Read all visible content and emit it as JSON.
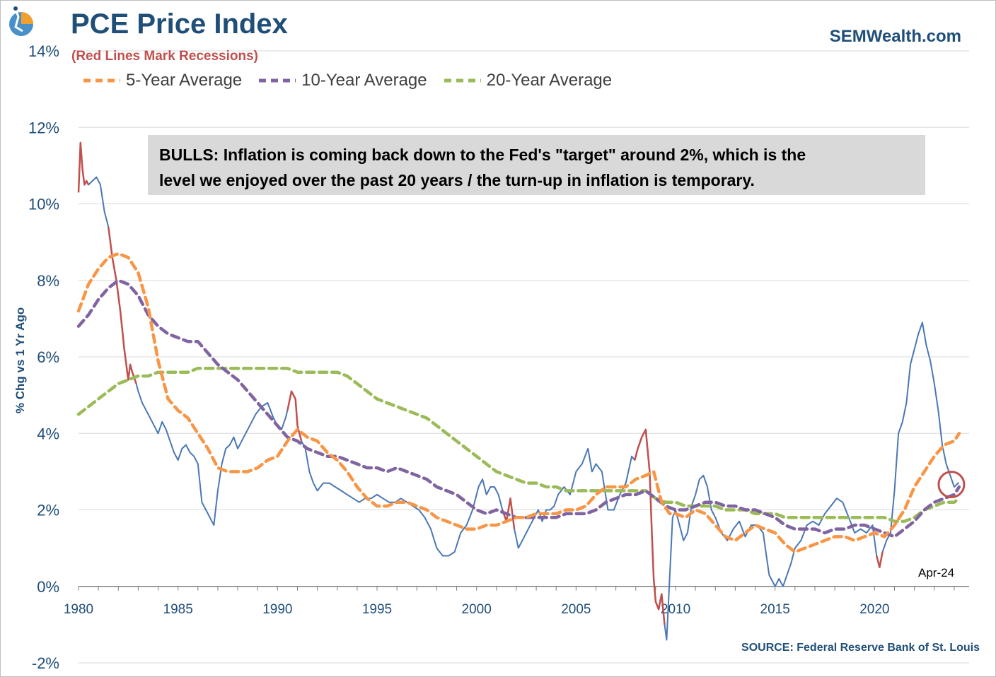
{
  "header": {
    "title": "PCE Price Index",
    "subtitle": "(Red Lines Mark Recessions)",
    "site": "SEMWealth.com",
    "source": "SOURCE:  Federal Reserve Bank of St. Louis"
  },
  "annotation": {
    "line1": "BULLS: Inflation is coming back down to the Fed's \"target\" around 2%, which is the",
    "line2": "level we enjoyed over the past 20 years / the turn-up in inflation is temporary."
  },
  "last_label": "Apr-24",
  "colors": {
    "pce": "#4a78b5",
    "recession": "#c0504d",
    "avg5": "#f79646",
    "avg10": "#8064a2",
    "avg20": "#9bbb59",
    "axis_text": "#1f4e79",
    "grid": "#d9d9d9"
  },
  "chart_data": {
    "type": "line",
    "title": "PCE Price Index",
    "ylabel": "% Chg vs 1 Yr Ago",
    "xlabel": "",
    "xlim": [
      1980,
      2024.75
    ],
    "ylim": [
      -2,
      14
    ],
    "y_ticks": [
      -2,
      0,
      2,
      4,
      6,
      8,
      10,
      12,
      14
    ],
    "y_tick_labels": [
      "-2%",
      "0%",
      "2%",
      "4%",
      "6%",
      "8%",
      "10%",
      "12%",
      "14%"
    ],
    "x_ticks": [
      1980,
      1985,
      1990,
      1995,
      2000,
      2005,
      2010,
      2015,
      2020
    ],
    "x_tick_labels": [
      "1980",
      "1985",
      "1990",
      "1995",
      "2000",
      "2005",
      "2010",
      "2015",
      "2020"
    ],
    "grid": true,
    "recessions": [
      [
        1980.0,
        1980.5
      ],
      [
        1981.5,
        1982.9
      ],
      [
        1990.5,
        1991.2
      ],
      [
        2001.2,
        2001.9
      ],
      [
        2007.9,
        2009.5
      ],
      [
        2020.1,
        2020.4
      ]
    ],
    "series": [
      {
        "name": "PCE Price Index",
        "x": [
          1980,
          1980.1,
          1980.2,
          1980.3,
          1980.4,
          1980.5,
          1980.7,
          1980.9,
          1981.1,
          1981.3,
          1981.5,
          1981.6,
          1981.7,
          1981.9,
          1982.1,
          1982.3,
          1982.5,
          1982.6,
          1982.7,
          1982.9,
          1983.0,
          1983.2,
          1983.4,
          1983.6,
          1983.8,
          1984.0,
          1984.2,
          1984.4,
          1984.6,
          1984.8,
          1985.0,
          1985.2,
          1985.4,
          1985.6,
          1985.8,
          1986.0,
          1986.2,
          1986.4,
          1986.6,
          1986.8,
          1987.0,
          1987.2,
          1987.4,
          1987.6,
          1987.8,
          1988.0,
          1988.3,
          1988.6,
          1988.9,
          1989.2,
          1989.5,
          1989.8,
          1990.0,
          1990.2,
          1990.4,
          1990.5,
          1990.7,
          1990.9,
          1991.0,
          1991.2,
          1991.4,
          1991.6,
          1991.8,
          1992.0,
          1992.3,
          1992.6,
          1992.9,
          1993.2,
          1993.5,
          1993.8,
          1994.1,
          1994.4,
          1994.7,
          1995.0,
          1995.3,
          1995.6,
          1995.9,
          1996.2,
          1996.5,
          1996.8,
          1997.1,
          1997.4,
          1997.7,
          1998.0,
          1998.3,
          1998.6,
          1998.9,
          1999.2,
          1999.5,
          1999.8,
          2000.1,
          2000.3,
          2000.5,
          2000.7,
          2000.9,
          2001.1,
          2001.3,
          2001.5,
          2001.7,
          2001.9,
          2002.1,
          2002.3,
          2002.5,
          2002.7,
          2002.9,
          2003.1,
          2003.3,
          2003.5,
          2003.7,
          2003.9,
          2004.1,
          2004.4,
          2004.7,
          2005.0,
          2005.3,
          2005.6,
          2005.8,
          2006.0,
          2006.3,
          2006.6,
          2006.9,
          2007.2,
          2007.5,
          2007.8,
          2007.95,
          2008.1,
          2008.3,
          2008.5,
          2008.7,
          2008.8,
          2008.9,
          2009.0,
          2009.15,
          2009.3,
          2009.45,
          2009.55,
          2009.7,
          2009.85,
          2010.0,
          2010.2,
          2010.4,
          2010.6,
          2010.8,
          2011.0,
          2011.2,
          2011.4,
          2011.6,
          2011.8,
          2012.0,
          2012.3,
          2012.6,
          2012.9,
          2013.2,
          2013.5,
          2013.8,
          2014.1,
          2014.4,
          2014.7,
          2015.0,
          2015.2,
          2015.4,
          2015.6,
          2015.8,
          2016.0,
          2016.3,
          2016.6,
          2016.9,
          2017.2,
          2017.5,
          2017.8,
          2018.1,
          2018.4,
          2018.7,
          2019.0,
          2019.3,
          2019.6,
          2019.9,
          2020.1,
          2020.25,
          2020.4,
          2020.6,
          2020.8,
          2021.0,
          2021.2,
          2021.4,
          2021.6,
          2021.8,
          2022.0,
          2022.2,
          2022.4,
          2022.6,
          2022.8,
          2023.0,
          2023.2,
          2023.4,
          2023.6,
          2023.8,
          2024.0,
          2024.2,
          2024.25
        ],
        "values": [
          10.3,
          11.6,
          10.9,
          10.5,
          10.6,
          10.5,
          10.6,
          10.7,
          10.5,
          9.8,
          9.4,
          9.0,
          8.6,
          8.0,
          7.2,
          6.2,
          5.4,
          5.8,
          5.6,
          5.3,
          5.1,
          4.8,
          4.6,
          4.4,
          4.2,
          4.0,
          4.3,
          4.1,
          3.8,
          3.5,
          3.3,
          3.6,
          3.7,
          3.5,
          3.4,
          3.2,
          2.2,
          2.0,
          1.8,
          1.6,
          2.5,
          3.2,
          3.6,
          3.7,
          3.9,
          3.6,
          3.9,
          4.2,
          4.5,
          4.7,
          4.8,
          4.4,
          4.2,
          4.1,
          4.4,
          4.6,
          5.1,
          4.9,
          4.2,
          3.8,
          3.6,
          3.0,
          2.7,
          2.5,
          2.7,
          2.7,
          2.6,
          2.5,
          2.4,
          2.3,
          2.2,
          2.3,
          2.3,
          2.4,
          2.3,
          2.2,
          2.2,
          2.3,
          2.2,
          2.1,
          2.0,
          1.8,
          1.5,
          1.0,
          0.8,
          0.8,
          0.9,
          1.4,
          1.6,
          2.0,
          2.6,
          2.8,
          2.4,
          2.6,
          2.6,
          2.4,
          2.0,
          1.7,
          2.3,
          1.5,
          1.0,
          1.2,
          1.4,
          1.6,
          1.8,
          2.0,
          1.7,
          2.0,
          2.0,
          2.1,
          2.4,
          2.6,
          2.4,
          3.0,
          3.2,
          3.6,
          3.0,
          3.2,
          3.0,
          2.0,
          2.0,
          2.4,
          2.7,
          3.4,
          3.3,
          3.6,
          3.9,
          4.1,
          3.0,
          1.5,
          0.2,
          -0.4,
          -0.6,
          -0.2,
          -1.0,
          -1.4,
          0.2,
          1.8,
          2.0,
          1.6,
          1.2,
          1.4,
          2.1,
          2.4,
          2.8,
          2.9,
          2.6,
          2.0,
          1.8,
          1.4,
          1.2,
          1.5,
          1.7,
          1.3,
          1.6,
          1.6,
          1.4,
          0.3,
          0.0,
          0.2,
          0.0,
          0.3,
          0.6,
          1.0,
          1.2,
          1.6,
          1.7,
          1.6,
          1.9,
          2.1,
          2.3,
          2.2,
          1.8,
          1.4,
          1.5,
          1.4,
          1.6,
          0.8,
          0.5,
          0.9,
          1.2,
          1.4,
          2.5,
          4.0,
          4.3,
          4.8,
          5.8,
          6.2,
          6.6,
          6.9,
          6.3,
          5.9,
          5.3,
          4.6,
          3.7,
          3.2,
          2.9,
          2.6,
          2.7,
          2.7
        ]
      },
      {
        "name": "5-Year Average",
        "x": [
          1980,
          1980.5,
          1981.0,
          1981.5,
          1982.0,
          1982.5,
          1983.0,
          1983.5,
          1984.0,
          1984.5,
          1985.0,
          1985.5,
          1986.0,
          1986.5,
          1987.0,
          1987.5,
          1988.0,
          1988.5,
          1989.0,
          1989.5,
          1990.0,
          1990.5,
          1991.0,
          1991.5,
          1992.0,
          1992.5,
          1993.0,
          1993.5,
          1994.0,
          1994.5,
          1995.0,
          1995.5,
          1996.0,
          1996.5,
          1997.0,
          1997.5,
          1998.0,
          1998.5,
          1999.0,
          1999.5,
          2000.0,
          2000.5,
          2001.0,
          2001.5,
          2002.0,
          2002.5,
          2003.0,
          2003.5,
          2004.0,
          2004.5,
          2005.0,
          2005.5,
          2006.0,
          2006.5,
          2007.0,
          2007.5,
          2008.0,
          2008.5,
          2008.9,
          2009.3,
          2009.7,
          2010.0,
          2010.5,
          2011.0,
          2011.5,
          2012.0,
          2012.5,
          2013.0,
          2013.5,
          2014.0,
          2014.5,
          2015.0,
          2015.5,
          2016.0,
          2016.5,
          2017.0,
          2017.5,
          2018.0,
          2018.5,
          2019.0,
          2019.5,
          2020.0,
          2020.5,
          2021.0,
          2021.5,
          2022.0,
          2022.5,
          2023.0,
          2023.5,
          2024.0,
          2024.25
        ],
        "values": [
          7.2,
          7.9,
          8.3,
          8.6,
          8.7,
          8.6,
          8.2,
          7.3,
          5.9,
          4.9,
          4.6,
          4.4,
          4.0,
          3.6,
          3.1,
          3.0,
          3.0,
          3.0,
          3.1,
          3.3,
          3.4,
          3.8,
          4.1,
          3.9,
          3.8,
          3.5,
          3.3,
          3.0,
          2.6,
          2.3,
          2.1,
          2.1,
          2.2,
          2.2,
          2.1,
          2.0,
          1.8,
          1.7,
          1.6,
          1.5,
          1.5,
          1.6,
          1.6,
          1.7,
          1.8,
          1.8,
          1.9,
          1.9,
          1.9,
          2.0,
          2.0,
          2.1,
          2.4,
          2.6,
          2.6,
          2.6,
          2.8,
          2.9,
          3.0,
          2.2,
          1.9,
          1.9,
          1.8,
          2.0,
          1.9,
          1.6,
          1.3,
          1.2,
          1.4,
          1.6,
          1.5,
          1.4,
          1.1,
          0.9,
          1.0,
          1.1,
          1.2,
          1.3,
          1.3,
          1.2,
          1.3,
          1.4,
          1.3,
          1.6,
          2.0,
          2.6,
          3.0,
          3.4,
          3.7,
          3.8,
          4.0
        ]
      },
      {
        "name": "10-Year Average",
        "x": [
          1980,
          1980.5,
          1981.0,
          1981.5,
          1982.0,
          1982.5,
          1983.0,
          1983.5,
          1984.0,
          1984.5,
          1985.0,
          1985.5,
          1986.0,
          1986.5,
          1987.0,
          1987.5,
          1988.0,
          1988.5,
          1989.0,
          1989.5,
          1990.0,
          1990.5,
          1991.0,
          1991.5,
          1992.0,
          1992.5,
          1993.0,
          1993.5,
          1994.0,
          1994.5,
          1995.0,
          1995.5,
          1996.0,
          1996.5,
          1997.0,
          1997.5,
          1998.0,
          1998.5,
          1999.0,
          1999.5,
          2000.0,
          2000.5,
          2001.0,
          2001.5,
          2002.0,
          2002.5,
          2003.0,
          2003.5,
          2004.0,
          2004.5,
          2005.0,
          2005.5,
          2006.0,
          2006.5,
          2007.0,
          2007.5,
          2008.0,
          2008.5,
          2009.0,
          2009.5,
          2010.0,
          2010.5,
          2011.0,
          2011.5,
          2012.0,
          2012.5,
          2013.0,
          2013.5,
          2014.0,
          2014.5,
          2015.0,
          2015.5,
          2016.0,
          2016.5,
          2017.0,
          2017.5,
          2018.0,
          2018.5,
          2019.0,
          2019.5,
          2020.0,
          2020.5,
          2021.0,
          2021.5,
          2022.0,
          2022.5,
          2023.0,
          2023.5,
          2024.0,
          2024.25
        ],
        "values": [
          6.8,
          7.1,
          7.5,
          7.8,
          8.0,
          7.9,
          7.6,
          7.1,
          6.8,
          6.6,
          6.5,
          6.4,
          6.4,
          6.1,
          5.8,
          5.6,
          5.4,
          5.1,
          4.8,
          4.5,
          4.2,
          3.9,
          3.8,
          3.6,
          3.5,
          3.4,
          3.4,
          3.3,
          3.2,
          3.1,
          3.1,
          3.0,
          3.1,
          3.0,
          2.9,
          2.8,
          2.6,
          2.5,
          2.4,
          2.2,
          2.0,
          1.9,
          2.0,
          1.9,
          1.8,
          1.8,
          1.8,
          1.8,
          1.8,
          1.9,
          1.9,
          1.9,
          2.0,
          2.2,
          2.3,
          2.4,
          2.4,
          2.5,
          2.3,
          2.1,
          2.0,
          2.0,
          2.1,
          2.2,
          2.2,
          2.1,
          2.1,
          2.0,
          2.0,
          1.9,
          1.8,
          1.6,
          1.5,
          1.5,
          1.5,
          1.4,
          1.5,
          1.5,
          1.6,
          1.6,
          1.5,
          1.4,
          1.3,
          1.5,
          1.7,
          2.0,
          2.2,
          2.3,
          2.4,
          2.6
        ]
      },
      {
        "name": "20-Year Average",
        "x": [
          1980,
          1980.5,
          1981.0,
          1981.5,
          1982.0,
          1982.5,
          1983.0,
          1983.5,
          1984.0,
          1984.5,
          1985.0,
          1985.5,
          1986.0,
          1986.5,
          1987.0,
          1987.5,
          1988.0,
          1988.5,
          1989.0,
          1989.5,
          1990.0,
          1990.5,
          1991.0,
          1991.5,
          1992.0,
          1992.5,
          1993.0,
          1993.5,
          1994.0,
          1994.5,
          1995.0,
          1995.5,
          1996.0,
          1996.5,
          1997.0,
          1997.5,
          1998.0,
          1998.5,
          1999.0,
          1999.5,
          2000.0,
          2000.5,
          2001.0,
          2001.5,
          2002.0,
          2002.5,
          2003.0,
          2003.5,
          2004.0,
          2004.5,
          2005.0,
          2005.5,
          2006.0,
          2006.5,
          2007.0,
          2007.5,
          2008.0,
          2008.5,
          2009.0,
          2009.5,
          2010.0,
          2010.5,
          2011.0,
          2011.5,
          2012.0,
          2012.5,
          2013.0,
          2013.5,
          2014.0,
          2014.5,
          2015.0,
          2015.5,
          2016.0,
          2016.5,
          2017.0,
          2017.5,
          2018.0,
          2018.5,
          2019.0,
          2019.5,
          2020.0,
          2020.5,
          2021.0,
          2021.5,
          2022.0,
          2022.5,
          2023.0,
          2023.5,
          2024.0,
          2024.25
        ],
        "values": [
          4.5,
          4.7,
          4.9,
          5.1,
          5.3,
          5.4,
          5.5,
          5.5,
          5.6,
          5.6,
          5.6,
          5.6,
          5.7,
          5.7,
          5.7,
          5.7,
          5.7,
          5.7,
          5.7,
          5.7,
          5.7,
          5.7,
          5.6,
          5.6,
          5.6,
          5.6,
          5.6,
          5.5,
          5.3,
          5.1,
          4.9,
          4.8,
          4.7,
          4.6,
          4.5,
          4.4,
          4.2,
          4.0,
          3.8,
          3.6,
          3.4,
          3.2,
          3.0,
          2.9,
          2.8,
          2.7,
          2.7,
          2.6,
          2.6,
          2.5,
          2.5,
          2.5,
          2.5,
          2.5,
          2.5,
          2.5,
          2.5,
          2.5,
          2.3,
          2.2,
          2.2,
          2.1,
          2.1,
          2.1,
          2.1,
          2.0,
          2.0,
          2.0,
          1.9,
          1.9,
          1.9,
          1.8,
          1.8,
          1.8,
          1.8,
          1.8,
          1.8,
          1.8,
          1.8,
          1.8,
          1.8,
          1.8,
          1.7,
          1.7,
          1.8,
          2.0,
          2.1,
          2.2,
          2.2,
          2.3
        ]
      }
    ],
    "legend": [
      "5-Year Average",
      "10-Year Average",
      "20-Year Average"
    ],
    "legend_position": "top-left"
  }
}
